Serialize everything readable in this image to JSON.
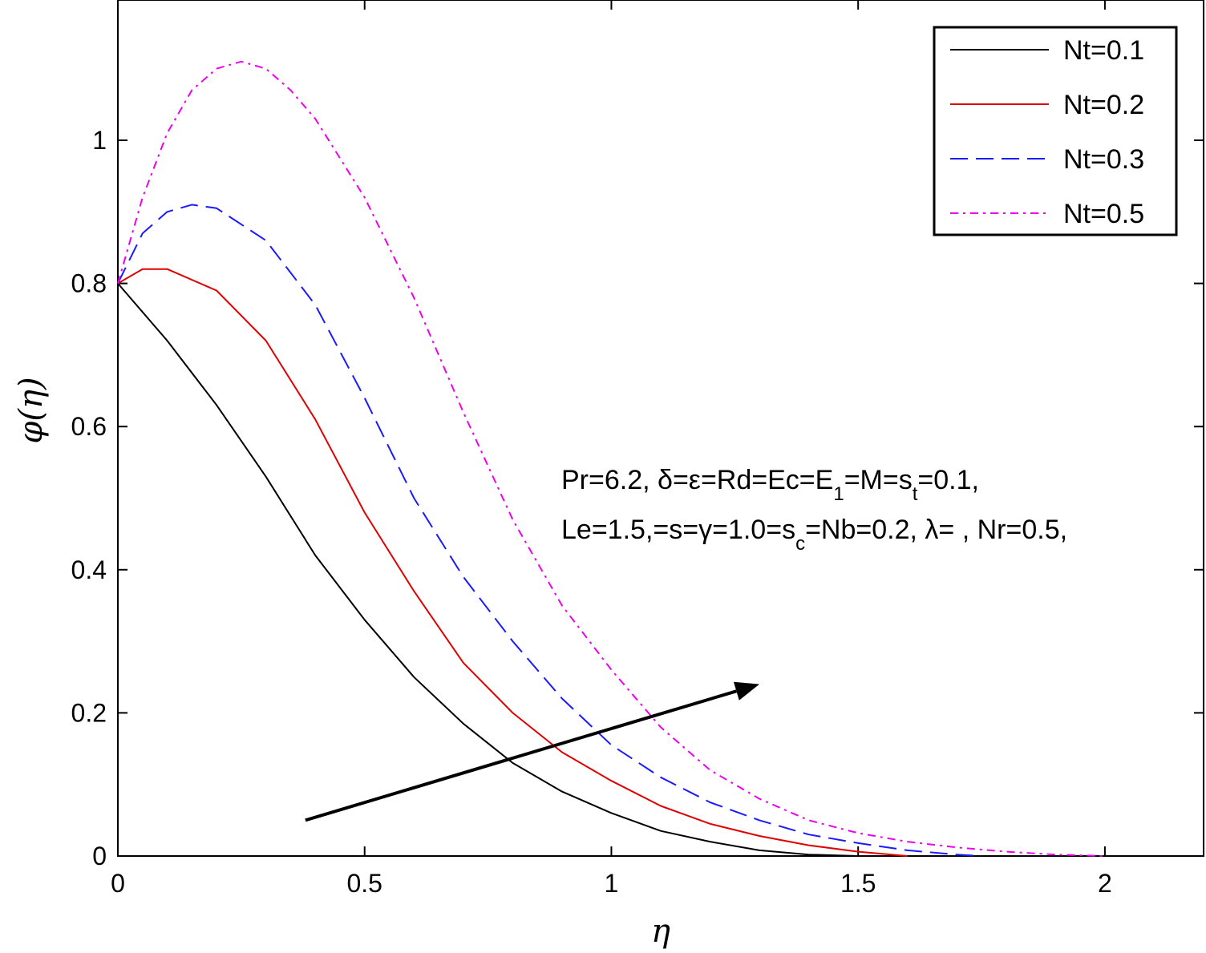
{
  "chart_data": {
    "type": "line",
    "xlabel": "η",
    "ylabel": "φ(η)",
    "xlim": [
      0,
      2.2
    ],
    "ylim": [
      0,
      1.2
    ],
    "xticks": [
      "0",
      "0.5",
      "1",
      "1.5",
      "2"
    ],
    "xtick_values": [
      0,
      0.5,
      1,
      1.5,
      2
    ],
    "yticks": [
      "0",
      "0.2",
      "0.4",
      "0.6",
      "0.8",
      "1"
    ],
    "ytick_values": [
      0,
      0.2,
      0.4,
      0.6,
      0.8,
      1
    ],
    "grid": false,
    "legend_position": "top-right",
    "series": [
      {
        "name": "Nt=0.1",
        "color": "#000000",
        "dash": "solid",
        "x": [
          0,
          0.1,
          0.2,
          0.3,
          0.4,
          0.5,
          0.6,
          0.7,
          0.8,
          0.9,
          1.0,
          1.1,
          1.2,
          1.3,
          1.4,
          1.5
        ],
        "y": [
          0.8,
          0.72,
          0.63,
          0.53,
          0.42,
          0.33,
          0.25,
          0.185,
          0.13,
          0.09,
          0.06,
          0.035,
          0.02,
          0.008,
          0.002,
          0
        ]
      },
      {
        "name": "Nt=0.2",
        "color": "#e00000",
        "dash": "solid",
        "x": [
          0,
          0.05,
          0.1,
          0.2,
          0.3,
          0.4,
          0.5,
          0.6,
          0.7,
          0.8,
          0.9,
          1.0,
          1.1,
          1.2,
          1.3,
          1.4,
          1.5,
          1.6
        ],
        "y": [
          0.8,
          0.82,
          0.82,
          0.79,
          0.72,
          0.61,
          0.48,
          0.37,
          0.27,
          0.2,
          0.145,
          0.105,
          0.07,
          0.045,
          0.028,
          0.015,
          0.006,
          0
        ]
      },
      {
        "name": "Nt=0.3",
        "color": "#1a1aff",
        "dash": "long-dash",
        "x": [
          0,
          0.05,
          0.1,
          0.15,
          0.2,
          0.3,
          0.4,
          0.5,
          0.6,
          0.7,
          0.8,
          0.9,
          1.0,
          1.1,
          1.2,
          1.3,
          1.4,
          1.5,
          1.6,
          1.7,
          1.75
        ],
        "y": [
          0.8,
          0.87,
          0.9,
          0.91,
          0.905,
          0.86,
          0.77,
          0.64,
          0.5,
          0.39,
          0.3,
          0.22,
          0.155,
          0.11,
          0.075,
          0.05,
          0.03,
          0.018,
          0.008,
          0.002,
          0
        ]
      },
      {
        "name": "Nt=0.5",
        "color": "#ee00ee",
        "dash": "dash-dot",
        "x": [
          0,
          0.05,
          0.1,
          0.15,
          0.2,
          0.25,
          0.3,
          0.35,
          0.4,
          0.5,
          0.6,
          0.7,
          0.8,
          0.9,
          1.0,
          1.1,
          1.2,
          1.3,
          1.4,
          1.5,
          1.6,
          1.7,
          1.8,
          1.9,
          2.0
        ],
        "y": [
          0.8,
          0.92,
          1.01,
          1.07,
          1.1,
          1.11,
          1.1,
          1.07,
          1.03,
          0.92,
          0.78,
          0.62,
          0.47,
          0.35,
          0.26,
          0.18,
          0.12,
          0.08,
          0.05,
          0.032,
          0.02,
          0.012,
          0.006,
          0.002,
          0
        ]
      }
    ],
    "arrow": {
      "from": [
        0.38,
        0.05
      ],
      "to": [
        1.3,
        0.24
      ]
    },
    "annotation_lines": [
      [
        {
          "t": "Pr=6.2, δ=ε=Rd=Ec=E"
        },
        {
          "t": "1",
          "sub": true
        },
        {
          "t": "=M=s"
        },
        {
          "t": "t",
          "sub": true
        },
        {
          "t": "=0.1,"
        }
      ],
      [
        {
          "t": "Le=1.5,=s=γ=1.0=s"
        },
        {
          "t": "c",
          "sub": true
        },
        {
          "t": "=Nb=0.2, λ= , Nr=0.5,"
        }
      ]
    ]
  }
}
